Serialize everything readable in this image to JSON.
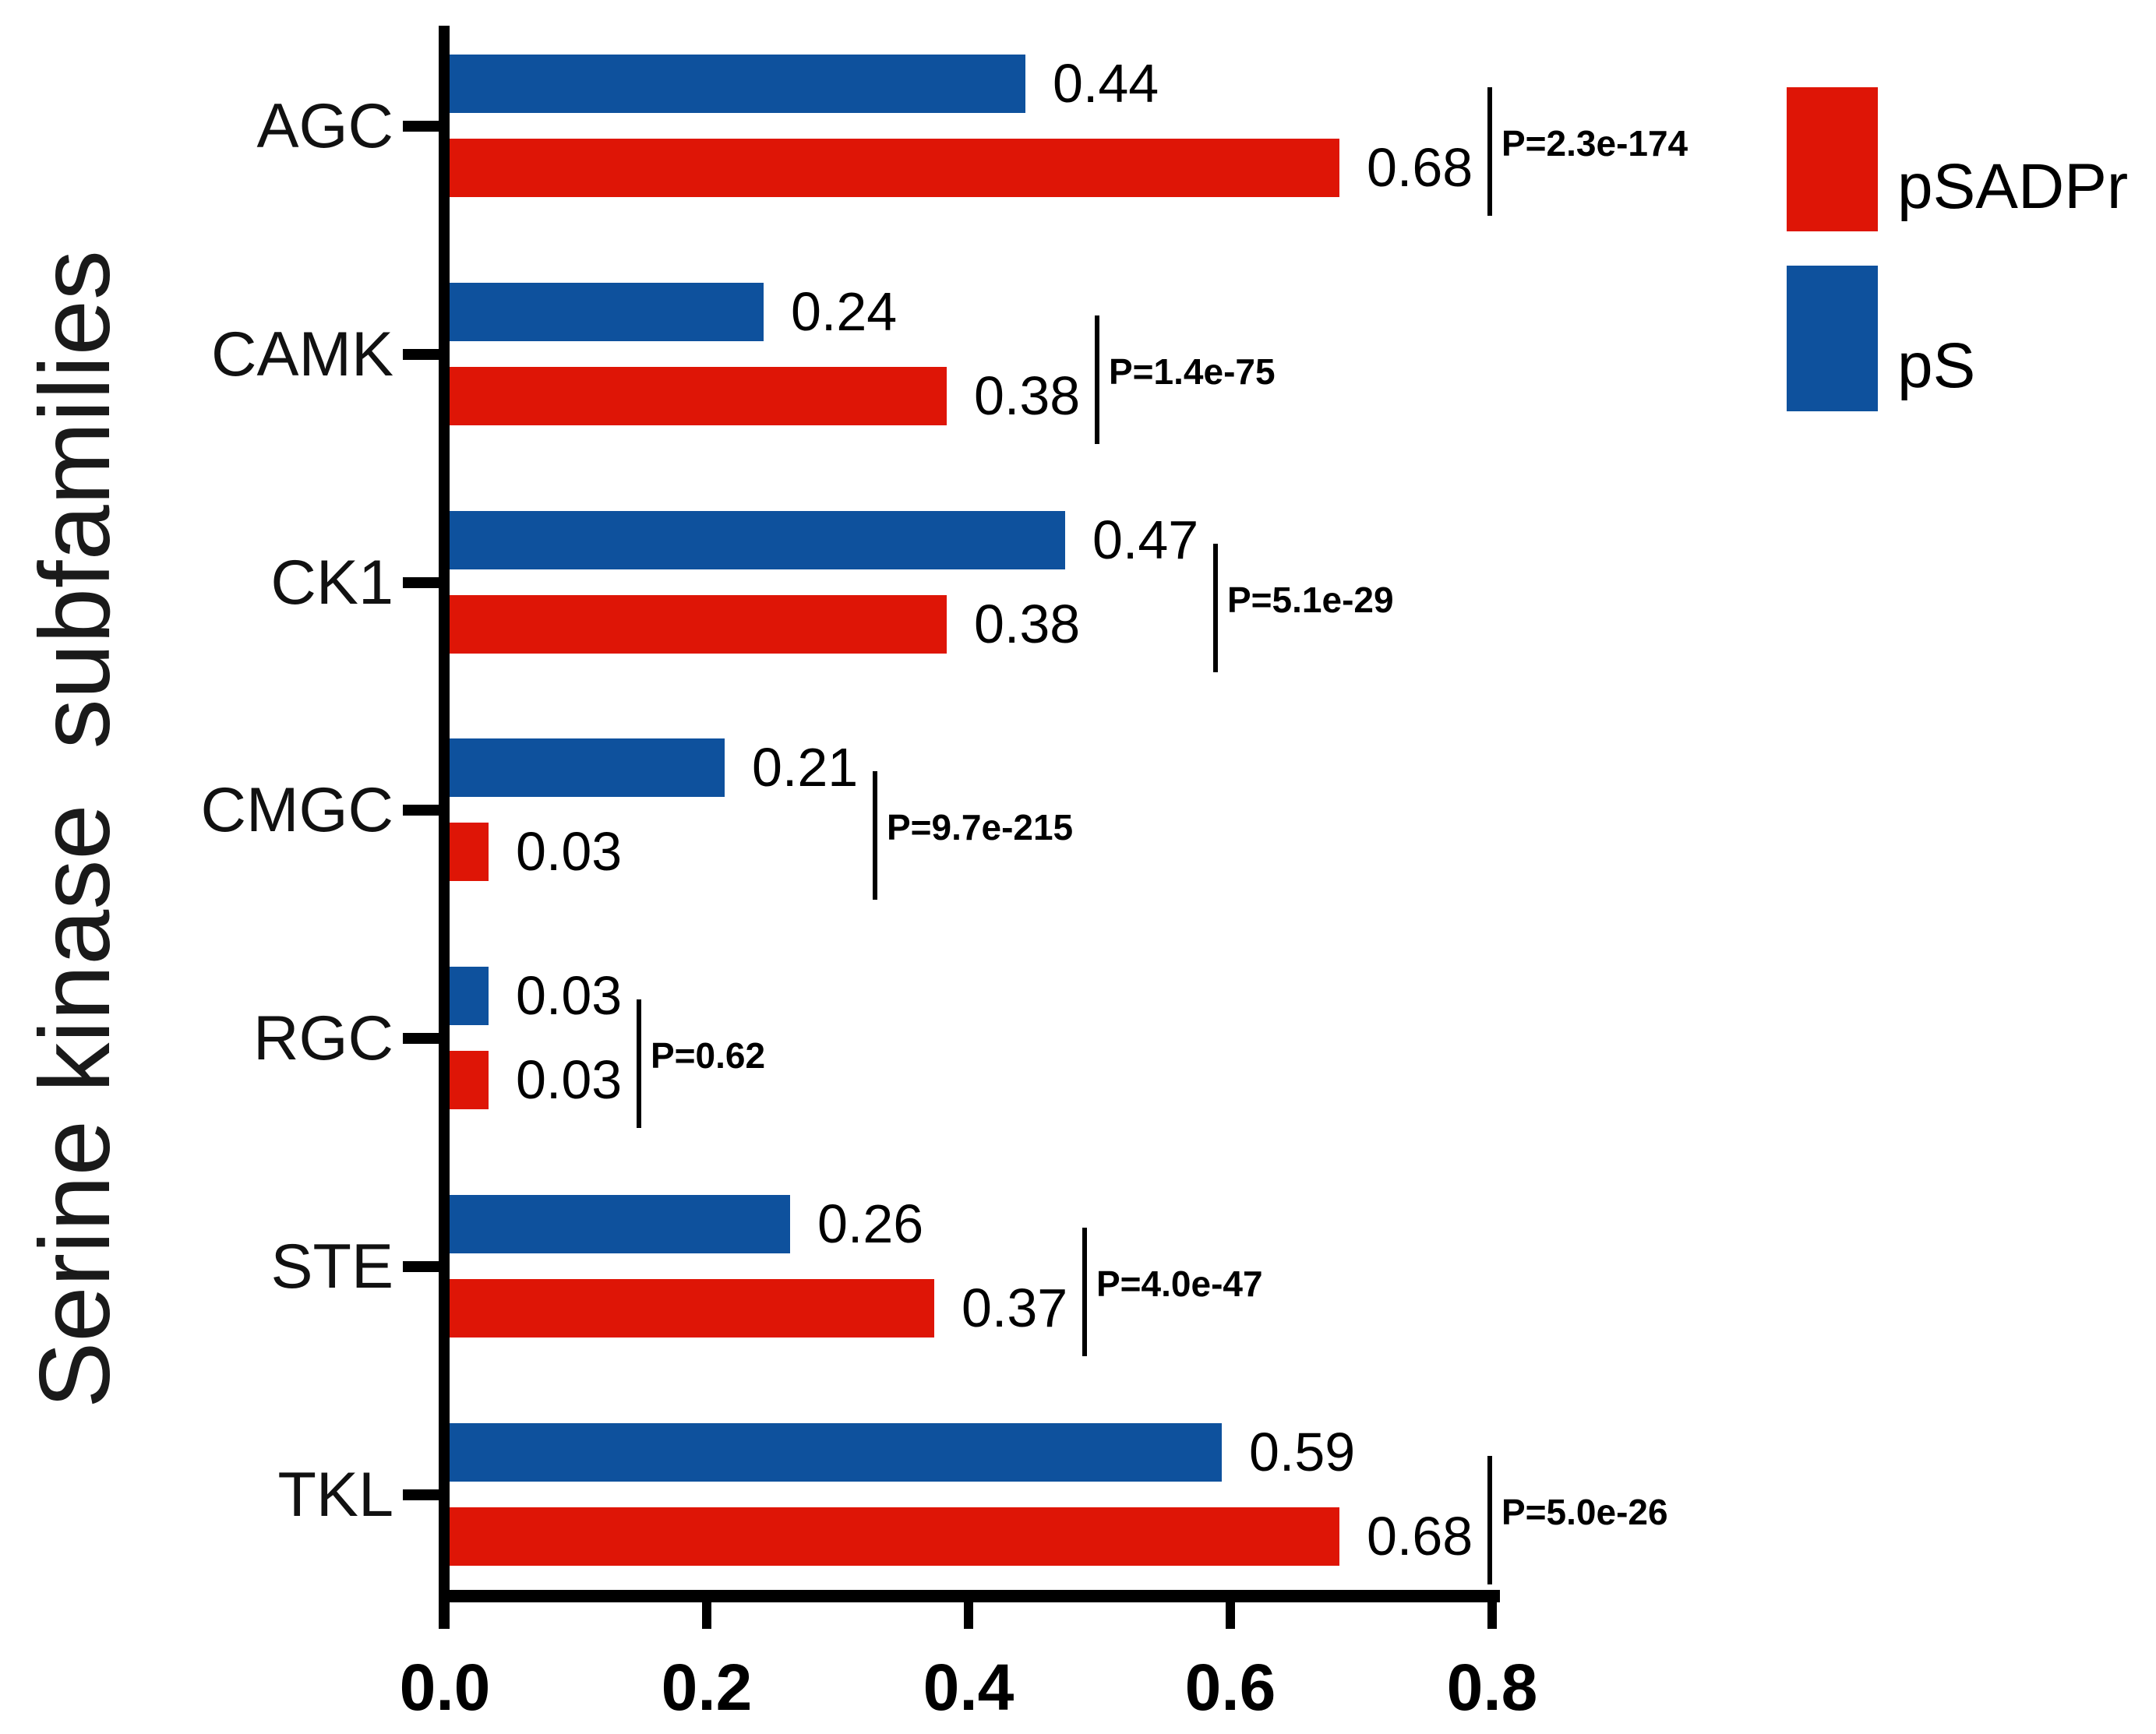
{
  "chart_data": {
    "type": "bar",
    "orientation": "horizontal",
    "title": "",
    "xlabel": "",
    "ylabel": "Serine kinase  subfamilies",
    "categories": [
      "AGC",
      "CAMK",
      "CK1",
      "CMGC",
      "RGC",
      "STE",
      "TKL"
    ],
    "series": [
      {
        "name": "pS",
        "color": "#0E519D",
        "values": [
          0.44,
          0.24,
          0.47,
          0.21,
          0.03,
          0.26,
          0.59
        ]
      },
      {
        "name": "pSADPr",
        "color": "#DE1506",
        "values": [
          0.68,
          0.38,
          0.38,
          0.03,
          0.03,
          0.37,
          0.68
        ]
      }
    ],
    "value_labels": [
      {
        "pS": "0.44",
        "pSADPr": "0.68"
      },
      {
        "pS": "0.24",
        "pSADPr": "0.38"
      },
      {
        "pS": "0.47",
        "pSADPr": "0.38"
      },
      {
        "pS": "0.21",
        "pSADPr": "0.03"
      },
      {
        "pS": "0.03",
        "pSADPr": "0.03"
      },
      {
        "pS": "0.26",
        "pSADPr": "0.37"
      },
      {
        "pS": "0.59",
        "pSADPr": "0.68"
      }
    ],
    "p_values": [
      "P=2.3e-174",
      "P=1.4e-75",
      "P=5.1e-29",
      "P=9.7e-215",
      "P=0.62",
      "P=4.0e-47",
      "P=5.0e-26"
    ],
    "xlim": [
      0,
      0.8
    ],
    "x_ticks": [
      "0.0",
      "0.2",
      "0.4",
      "0.6",
      "0.8"
    ],
    "grid": false,
    "legend_position": "upper right",
    "legend": [
      {
        "label": "pSADPr",
        "color": "#DE1506"
      },
      {
        "label": "pS",
        "color": "#0E519D"
      }
    ],
    "colors": {
      "axis": "#000000",
      "background": "#ffffff"
    }
  }
}
